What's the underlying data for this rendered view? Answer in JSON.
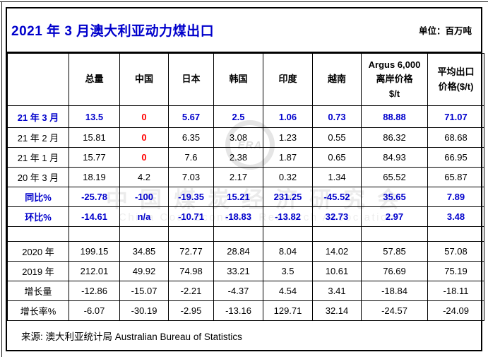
{
  "title": "2021 年 3 月澳大利亚动力煤出口",
  "unit_label": "单位：百万吨",
  "colors": {
    "title_blue": "#0000cc",
    "highlight_blue": "#0000cc",
    "alert_red": "#ff0000"
  },
  "table": {
    "columns": [
      "",
      "总量",
      "中国",
      "日本",
      "韩国",
      "印度",
      "越南",
      "Argus 6,000\n离岸价格\n$/t",
      "平均出口\n价格($/t)"
    ],
    "rows": [
      {
        "label": "21 年 3 月",
        "values": [
          "13.5",
          "0",
          "5.67",
          "2.5",
          "1.06",
          "0.73",
          "88.88",
          "71.07"
        ],
        "row_style": "highlight",
        "first": true,
        "red_cells": [
          1
        ]
      },
      {
        "label": "21 年 2 月",
        "values": [
          "15.81",
          "0",
          "6.35",
          "3.08",
          "1.23",
          "0.55",
          "86.32",
          "68.68"
        ],
        "row_style": "normal",
        "first": false,
        "red_cells": [
          1
        ]
      },
      {
        "label": "21 年 1 月",
        "values": [
          "15.77",
          "0",
          "7.6",
          "2.38",
          "1.87",
          "0.65",
          "84.93",
          "66.95"
        ],
        "row_style": "normal",
        "first": false,
        "red_cells": [
          1
        ]
      },
      {
        "label": "20 年 3 月",
        "values": [
          "18.19",
          "4.2",
          "7.03",
          "2.17",
          "0.32",
          "1.34",
          "65.52",
          "65.87"
        ],
        "row_style": "normal",
        "first": false,
        "red_cells": []
      },
      {
        "label": "同比%",
        "values": [
          "-25.78",
          "-100",
          "-19.35",
          "15.21",
          "231.25",
          "-45.52",
          "35.65",
          "7.89"
        ],
        "row_style": "highlight",
        "first": false,
        "red_cells": []
      },
      {
        "label": "环比%",
        "values": [
          "-14.61",
          "n/a",
          "-10.71",
          "-18.83",
          "-13.82",
          "32.73",
          "2.97",
          "3.48"
        ],
        "row_style": "highlight",
        "first": false,
        "red_cells": []
      },
      {
        "label": "",
        "values": [
          "",
          "",
          "",
          "",
          "",
          "",
          "",
          ""
        ],
        "row_style": "empty",
        "first": false,
        "red_cells": []
      },
      {
        "label": "2020 年",
        "values": [
          "199.15",
          "34.85",
          "72.77",
          "28.84",
          "8.04",
          "14.02",
          "57.85",
          "57.08"
        ],
        "row_style": "normal",
        "first": false,
        "red_cells": []
      },
      {
        "label": "2019 年",
        "values": [
          "212.01",
          "49.92",
          "74.98",
          "33.21",
          "3.5",
          "10.61",
          "76.69",
          "75.19"
        ],
        "row_style": "normal",
        "first": false,
        "red_cells": []
      },
      {
        "label": "增长量",
        "values": [
          "-12.86",
          "-15.07",
          "-2.21",
          "-4.37",
          "4.54",
          "3.41",
          "-18.84",
          "-18.11"
        ],
        "row_style": "normal",
        "first": false,
        "red_cells": []
      },
      {
        "label": "增长率%",
        "values": [
          "-6.07",
          "-30.19",
          "-2.95",
          "-13.16",
          "129.71",
          "32.14",
          "-24.57",
          "-24.09"
        ],
        "row_style": "normal",
        "first": false,
        "red_cells": []
      }
    ]
  },
  "footer": {
    "source": "来源: 澳大利亚统计局  Australian Bureau of Statistics"
  },
  "watermark": {
    "emblem_text": "ERA",
    "text_cn": "中国煤炭经济研究会",
    "text_en": "China Coal Economic Research Association"
  }
}
